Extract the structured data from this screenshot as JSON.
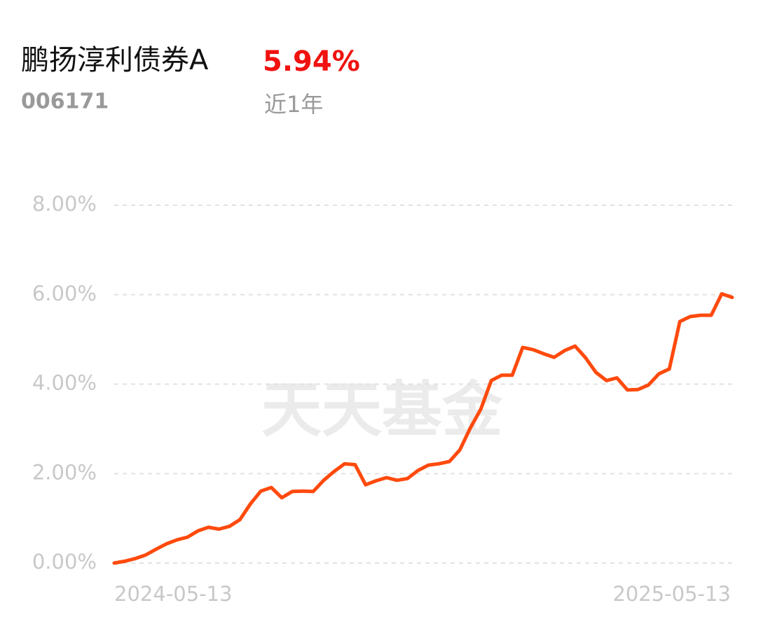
{
  "chart_data": {
    "type": "line",
    "title": "鹏扬淳利债券A",
    "code": "006171",
    "return_label": "5.94%",
    "return_period": "近1年",
    "watermark": "天天基金",
    "x_start": "2024-05-13",
    "x_end": "2025-05-13",
    "series": [
      {
        "name": "鹏扬淳利债券A",
        "color": "#ff4a0d",
        "values": [
          0,
          0.04,
          0.1,
          0.18,
          0.31,
          0.43,
          0.52,
          0.58,
          0.72,
          0.8,
          0.76,
          0.82,
          0.97,
          1.32,
          1.61,
          1.69,
          1.46,
          1.6,
          1.61,
          1.6,
          1.85,
          2.05,
          2.22,
          2.2,
          1.75,
          1.84,
          1.91,
          1.85,
          1.89,
          2.07,
          2.19,
          2.22,
          2.27,
          2.53,
          3.02,
          3.44,
          4.08,
          4.2,
          4.2,
          4.82,
          4.77,
          4.68,
          4.6,
          4.75,
          4.85,
          4.59,
          4.26,
          4.08,
          4.14,
          3.87,
          3.88,
          3.98,
          4.23,
          4.34,
          5.4,
          5.51,
          5.54,
          5.54,
          6.02,
          5.94
        ]
      }
    ],
    "ylim": [
      0,
      8
    ],
    "yticks": [
      {
        "value": 0,
        "label": "0.00%"
      },
      {
        "value": 2,
        "label": "2.00%"
      },
      {
        "value": 4,
        "label": "4.00%"
      },
      {
        "value": 6,
        "label": "6.00%"
      },
      {
        "value": 8,
        "label": "8.00%"
      }
    ],
    "grid": true
  }
}
